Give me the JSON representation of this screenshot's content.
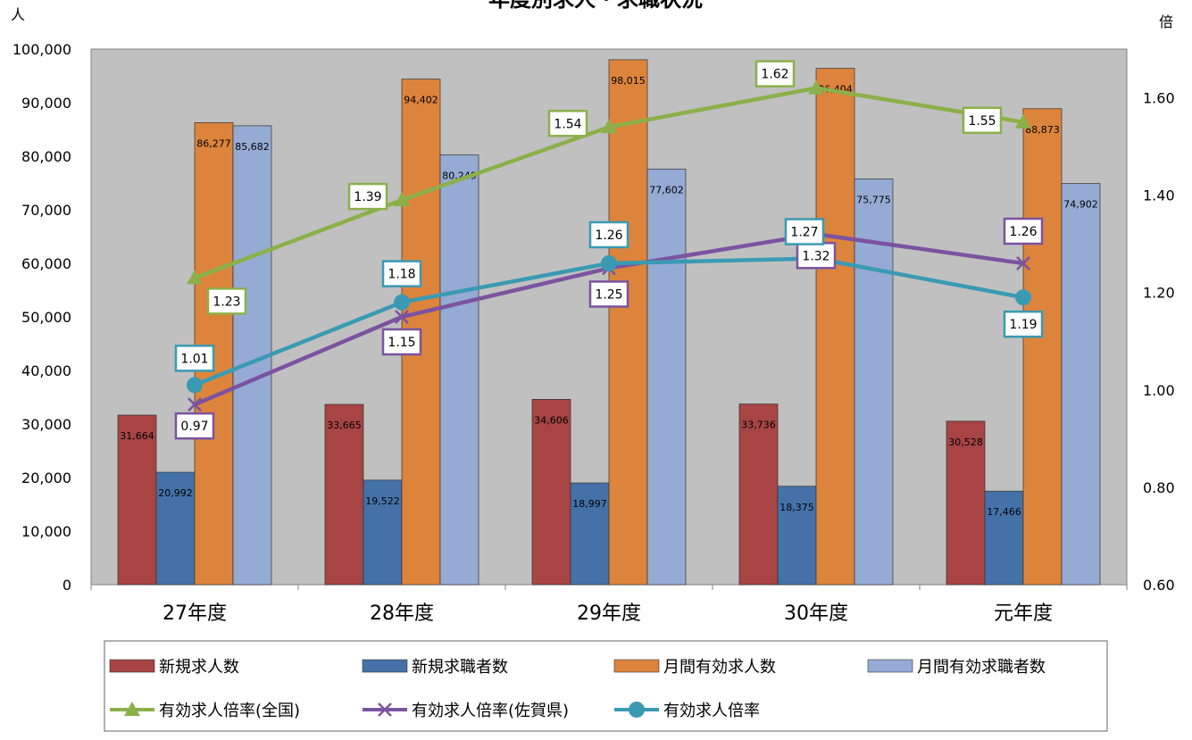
{
  "chart_data": {
    "type": "bar",
    "title": "年度別求人・求職状況",
    "left_unit": "人",
    "right_unit": "倍",
    "categories": [
      "27年度",
      "28年度",
      "29年度",
      "30年度",
      "元年度"
    ],
    "left_axis": {
      "min": 0,
      "max": 100000,
      "step": 10000,
      "ticks": [
        "0",
        "10,000",
        "20,000",
        "30,000",
        "40,000",
        "50,000",
        "60,000",
        "70,000",
        "80,000",
        "90,000",
        "100,000"
      ]
    },
    "right_axis": {
      "min": 0.6,
      "max": 1.7,
      "ticks": [
        "0.60",
        "0.80",
        "1.00",
        "1.20",
        "1.40",
        "1.60"
      ]
    },
    "grid": false,
    "legend_position": "bottom",
    "bar_series": [
      {
        "name": "新規求人数",
        "color": "#a84444",
        "values": [
          31664,
          33665,
          34606,
          33736,
          30528
        ],
        "labels": [
          "31,664",
          "33,665",
          "34,606",
          "33,736",
          "30,528"
        ]
      },
      {
        "name": "新規求職者数",
        "color": "#4472a8",
        "values": [
          20992,
          19522,
          18997,
          18375,
          17466
        ],
        "labels": [
          "20,992",
          "19,522",
          "18,997",
          "18,375",
          "17,466"
        ]
      },
      {
        "name": "月間有効求人数",
        "color": "#dd843c",
        "values": [
          86277,
          94402,
          98015,
          96404,
          88873
        ],
        "labels": [
          "86,277",
          "94,402",
          "98,015",
          "96,404",
          "88,873"
        ]
      },
      {
        "name": "月間有効求職者数",
        "color": "#95abd4",
        "values": [
          85682,
          80249,
          77602,
          75775,
          74902
        ],
        "labels": [
          "85,682",
          "80,249",
          "77,602",
          "75,775",
          "74,902"
        ]
      }
    ],
    "line_series": [
      {
        "name": "有効求人倍率(全国)",
        "color": "#8bb04a",
        "marker": "triangle",
        "values": [
          1.23,
          1.39,
          1.54,
          1.62,
          1.55
        ],
        "labels": [
          "1.23",
          "1.39",
          "1.54",
          "1.62",
          "1.55"
        ]
      },
      {
        "name": "有効求人倍率(佐賀県)",
        "color": "#7b53a0",
        "marker": "x",
        "values": [
          0.97,
          1.15,
          1.25,
          1.32,
          1.26
        ],
        "labels": [
          "0.97",
          "1.15",
          "1.25",
          "1.32",
          "1.26"
        ]
      },
      {
        "name": "有効求人倍率",
        "color": "#3a9ab3",
        "marker": "circle",
        "values": [
          1.01,
          1.18,
          1.26,
          1.27,
          1.19
        ],
        "labels": [
          "1.01",
          "1.18",
          "1.26",
          "1.27",
          "1.19"
        ]
      }
    ]
  }
}
